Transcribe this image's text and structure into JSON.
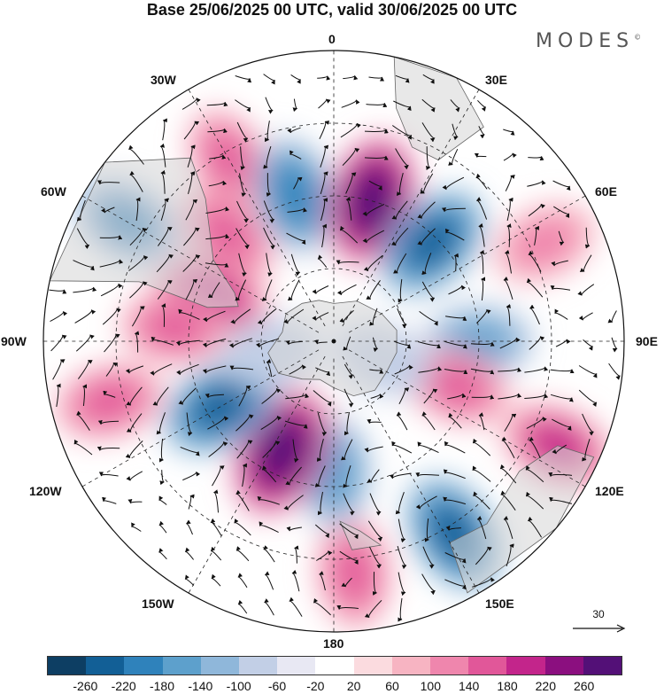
{
  "title": "Base 25/06/2025 00 UTC, valid 30/06/2025 00 UTC",
  "logo": "MODES",
  "logo_mark": "©",
  "longitude_labels": {
    "l0": "0",
    "l30e": "30E",
    "l60e": "60E",
    "l90e": "90E",
    "l120e": "120E",
    "l150e": "150E",
    "l180": "180",
    "l150w": "150W",
    "l120w": "120W",
    "l90w": "90W",
    "l60w": "60W",
    "l30w": "30W"
  },
  "vector_scale_label": "30",
  "colorbar": {
    "colors": [
      "#0d3e63",
      "#125f96",
      "#2f82bb",
      "#5da0cc",
      "#8fb7da",
      "#c2cfe6",
      "#e8e8f3",
      "#ffffff",
      "#fbdbdf",
      "#f7b4c2",
      "#ef86ad",
      "#e15799",
      "#c3258b",
      "#8b0f7f",
      "#531077"
    ],
    "ticks": [
      "-260",
      "-220",
      "-180",
      "-140",
      "-100",
      "-60",
      "-20",
      "20",
      "60",
      "100",
      "140",
      "180",
      "220",
      "260"
    ]
  },
  "anomalies": [
    {
      "name": "atlantic-high-a",
      "lon": 330,
      "colat": 0.72,
      "value": 100
    },
    {
      "name": "atlantic-high-b",
      "lon": 315,
      "colat": 0.52,
      "value": 120
    },
    {
      "name": "south-america-high",
      "lon": 290,
      "colat": 0.45,
      "value": 170
    },
    {
      "name": "southwest-atlantic-low",
      "lon": 300,
      "colat": 0.82,
      "value": -150
    },
    {
      "name": "south-atlantic-low",
      "lon": 345,
      "colat": 0.52,
      "value": -170
    },
    {
      "name": "south-africa-high",
      "lon": 15,
      "colat": 0.5,
      "value": 250
    },
    {
      "name": "indian-ocean-low",
      "lon": 45,
      "colat": 0.48,
      "value": -190
    },
    {
      "name": "indian-ocean-high",
      "lon": 65,
      "colat": 0.8,
      "value": 90
    },
    {
      "name": "east-indian-low",
      "lon": 90,
      "colat": 0.5,
      "value": -110
    },
    {
      "name": "australia-high-a",
      "lon": 115,
      "colat": 0.85,
      "value": 160
    },
    {
      "name": "australia-high-b",
      "lon": 110,
      "colat": 0.45,
      "value": 100
    },
    {
      "name": "tasman-low",
      "lon": 148,
      "colat": 0.78,
      "value": -190
    },
    {
      "name": "new-zealand-high",
      "lon": 175,
      "colat": 0.8,
      "value": 120
    },
    {
      "name": "pacific-low",
      "lon": 180,
      "colat": 0.45,
      "value": -130
    },
    {
      "name": "south-pacific-high",
      "lon": 205,
      "colat": 0.42,
      "value": 260
    },
    {
      "name": "east-pacific-low",
      "lon": 240,
      "colat": 0.45,
      "value": -190
    },
    {
      "name": "east-pacific-high",
      "lon": 255,
      "colat": 0.8,
      "value": 110
    },
    {
      "name": "chile-high",
      "lon": 275,
      "colat": 0.55,
      "value": 100
    },
    {
      "name": "west-antarctic-low",
      "lon": 260,
      "colat": 0.22,
      "value": -60
    },
    {
      "name": "east-antarctic-low",
      "lon": 110,
      "colat": 0.18,
      "value": -60
    }
  ],
  "landmasses": [
    {
      "name": "antarctica",
      "points": [
        [
          0,
          0.13
        ],
        [
          30,
          0.16
        ],
        [
          60,
          0.19
        ],
        [
          80,
          0.22
        ],
        [
          100,
          0.22
        ],
        [
          120,
          0.21
        ],
        [
          140,
          0.22
        ],
        [
          160,
          0.2
        ],
        [
          180,
          0.16
        ],
        [
          200,
          0.14
        ],
        [
          220,
          0.17
        ],
        [
          240,
          0.22
        ],
        [
          260,
          0.23
        ],
        [
          280,
          0.18
        ],
        [
          300,
          0.19
        ],
        [
          320,
          0.17
        ],
        [
          340,
          0.15
        ]
      ]
    },
    {
      "name": "south-africa",
      "points": [
        [
          15,
          0.83
        ],
        [
          22,
          0.72
        ],
        [
          30,
          0.72
        ],
        [
          35,
          0.9
        ],
        [
          25,
          1.0
        ],
        [
          12,
          1.0
        ]
      ]
    },
    {
      "name": "australia",
      "points": [
        [
          115,
          0.85
        ],
        [
          125,
          0.78
        ],
        [
          140,
          0.82
        ],
        [
          150,
          0.8
        ],
        [
          152,
          0.98
        ],
        [
          130,
          1.0
        ],
        [
          114,
          0.98
        ]
      ]
    },
    {
      "name": "new-zealand",
      "points": [
        [
          167,
          0.72
        ],
        [
          172,
          0.66
        ],
        [
          178,
          0.62
        ],
        [
          175,
          0.72
        ]
      ]
    },
    {
      "name": "south-america",
      "points": [
        [
          290,
          0.35
        ],
        [
          296,
          0.38
        ],
        [
          304,
          0.5
        ],
        [
          318,
          0.66
        ],
        [
          322,
          0.8
        ],
        [
          308,
          1.0
        ],
        [
          282,
          1.0
        ],
        [
          287,
          0.7
        ],
        [
          285,
          0.45
        ]
      ]
    }
  ]
}
